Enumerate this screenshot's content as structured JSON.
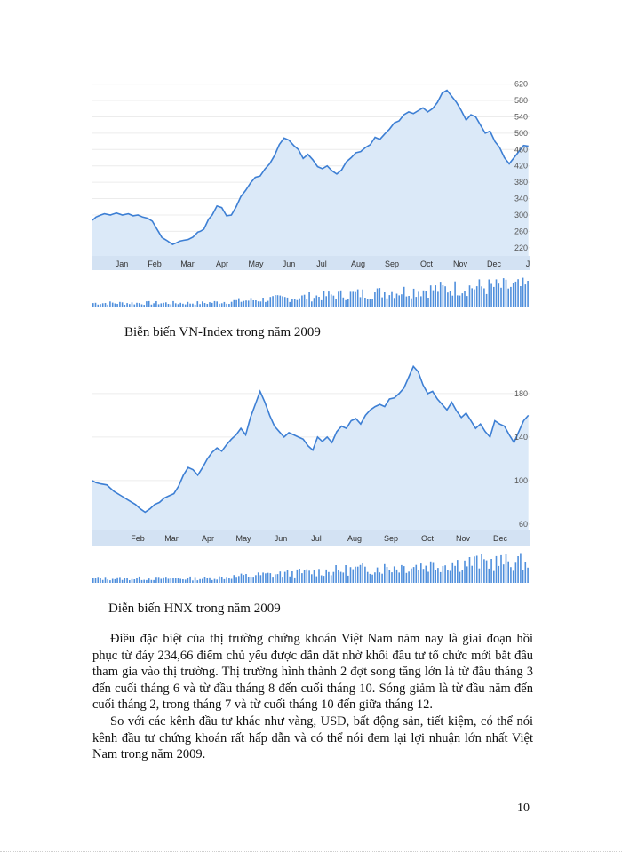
{
  "charts": [
    {
      "caption": "Biễn biến VN-Index trong năm 2009",
      "ticks_y": [
        220,
        260,
        300,
        340,
        380,
        420,
        460,
        500,
        540,
        580,
        620
      ],
      "months": [
        "Jan",
        "Feb",
        "Mar",
        "Apr",
        "May",
        "Jun",
        "Jul",
        "Aug",
        "Sep",
        "Oct",
        "Nov",
        "Dec",
        "J"
      ]
    },
    {
      "caption": "Diễn biến HNX trong năm 2009",
      "ticks_y": [
        60,
        100,
        140,
        180
      ],
      "months": [
        "Feb",
        "Mar",
        "Apr",
        "May",
        "Jun",
        "Jul",
        "Aug",
        "Sep",
        "Oct",
        "Nov",
        "Dec"
      ]
    }
  ],
  "chart_data": [
    {
      "type": "area",
      "ylim": [
        200,
        630
      ],
      "x": [
        0,
        3,
        7,
        10,
        15,
        20,
        25,
        30,
        34,
        38,
        42,
        46,
        50,
        53,
        56,
        58,
        62,
        65,
        67,
        70,
        73,
        76,
        80,
        84,
        88,
        90,
        93,
        97,
        100,
        104,
        108,
        112,
        116,
        120,
        124,
        128,
        132,
        136,
        140,
        144,
        148,
        152,
        156,
        160,
        164,
        168,
        172,
        176,
        180,
        184,
        188,
        192,
        196,
        200,
        204,
        208,
        212,
        216,
        220,
        224,
        228,
        232,
        236,
        240,
        244,
        248,
        252,
        256,
        260,
        264,
        268,
        272,
        276,
        280,
        284,
        288,
        292,
        296,
        300,
        304,
        308,
        312,
        316,
        320,
        324,
        328,
        332,
        336,
        340,
        344,
        348,
        352,
        356,
        360,
        364
      ],
      "values": [
        287,
        295,
        300,
        303,
        300,
        305,
        300,
        303,
        298,
        300,
        295,
        292,
        285,
        270,
        255,
        245,
        238,
        232,
        228,
        232,
        236,
        238,
        240,
        246,
        258,
        260,
        265,
        290,
        300,
        322,
        318,
        298,
        300,
        320,
        345,
        360,
        378,
        392,
        395,
        412,
        425,
        445,
        472,
        488,
        483,
        470,
        460,
        438,
        448,
        435,
        418,
        413,
        420,
        408,
        400,
        410,
        430,
        440,
        452,
        455,
        465,
        472,
        490,
        485,
        498,
        510,
        525,
        530,
        545,
        552,
        548,
        555,
        562,
        552,
        560,
        575,
        598,
        605,
        590,
        575,
        555,
        532,
        545,
        540,
        520,
        500,
        505,
        480,
        465,
        440,
        425,
        440,
        455,
        470,
        468
      ]
    },
    {
      "type": "area",
      "ylim": [
        55,
        215
      ],
      "x": [
        0,
        3,
        7,
        12,
        18,
        24,
        30,
        36,
        40,
        44,
        48,
        52,
        56,
        60,
        64,
        68,
        72,
        76,
        80,
        84,
        88,
        92,
        96,
        100,
        104,
        108,
        112,
        116,
        120,
        124,
        128,
        132,
        136,
        140,
        144,
        148,
        152,
        156,
        160,
        164,
        168,
        172,
        176,
        180,
        184,
        188,
        192,
        196,
        200,
        204,
        208,
        212,
        216,
        220,
        224,
        228,
        232,
        236,
        240,
        244,
        248,
        252,
        256,
        260,
        264,
        268,
        272,
        276,
        280,
        284,
        288,
        292,
        296,
        300,
        304,
        308,
        312,
        316,
        320,
        324,
        328,
        332,
        336,
        340,
        344,
        348,
        352,
        356,
        360,
        364
      ],
      "values": [
        100,
        98,
        97,
        96,
        90,
        86,
        82,
        78,
        74,
        71,
        74,
        78,
        80,
        84,
        86,
        88,
        95,
        105,
        112,
        110,
        105,
        112,
        120,
        126,
        130,
        127,
        133,
        138,
        142,
        148,
        142,
        158,
        170,
        182,
        172,
        160,
        150,
        145,
        140,
        144,
        142,
        140,
        138,
        132,
        128,
        140,
        136,
        140,
        135,
        145,
        150,
        148,
        155,
        157,
        152,
        160,
        165,
        168,
        170,
        168,
        175,
        176,
        180,
        185,
        195,
        205,
        200,
        188,
        180,
        182,
        175,
        170,
        165,
        172,
        164,
        158,
        162,
        155,
        148,
        152,
        145,
        140,
        155,
        152,
        150,
        142,
        135,
        145,
        155,
        160
      ]
    }
  ],
  "body": {
    "para1": "Điều đặc biệt của thị trường chứng khoán Việt Nam năm nay là giai đoạn hồi phục từ đáy 234,66 điểm chủ yếu được dẫn dắt nhờ khối đầu tư tổ chức mới bắt đầu tham gia vào thị trường. Thị trường hình thành 2 đợt song tăng lớn là từ đầu tháng 3 đến cuối tháng 6 và từ đầu tháng 8 đến cuối tháng 10. Sóng giảm là từ đầu năm đến cuối tháng 2, trong tháng 7 và từ cuối tháng 10 đến giữa tháng 12.",
    "para2": "So với các kênh đầu tư khác như vàng, USD, bất động sản, tiết kiệm, có thể nói kênh đầu tư chứng khoán rất hấp dẫn và có thể nói đem lại lợi nhuận lớn nhất Việt Nam trong năm 2009."
  },
  "page_number": "10",
  "colors": {
    "line": "#3d7fd4",
    "area": "#dbe9f8",
    "grid": "#ececec",
    "axis_band": "#d3e2f3",
    "volume": "#4f8fdc"
  }
}
